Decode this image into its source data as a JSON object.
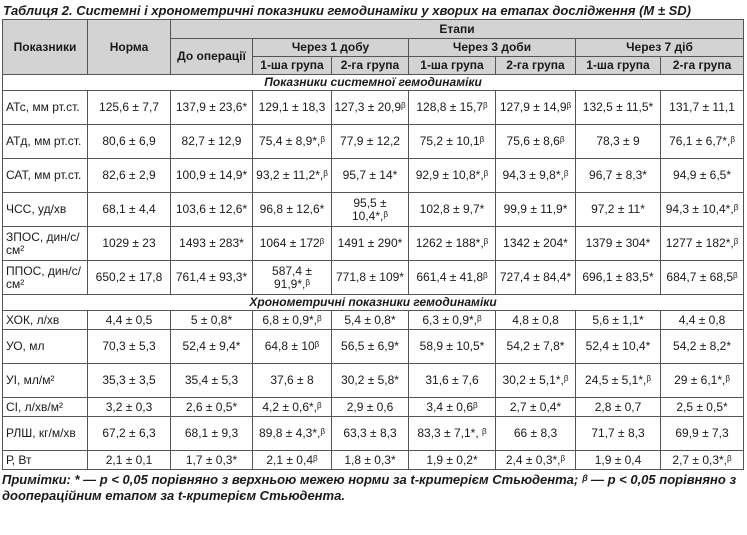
{
  "caption": "Таблиця 2. Системні і хронометричні показники гемодинаміки у хворих на етапах дослідження (M ± SD)",
  "header": {
    "indicator": "Показники",
    "norm": "Норма",
    "stages": "Етапи",
    "before_op": "До операції",
    "after_1_day": "Через 1 добу",
    "after_3_days": "Через 3 доби",
    "after_7_days": "Через 7 діб",
    "group1": "1-ша група",
    "group2": "2-га група"
  },
  "sections": [
    {
      "title": "Показники системної гемодинаміки",
      "rows": [
        {
          "label": "АТс, мм рт.ст.",
          "cells": [
            "125,6 ± 7,7",
            "137,9 ± 23,6*",
            "129,1 ± 18,3",
            "127,3 ± 20,9ᵝ",
            "128,8 ± 15,7ᵝ",
            "127,9 ± 14,9ᵝ",
            "132,5 ± 11,5*",
            "131,7 ± 11,1"
          ]
        },
        {
          "label": "АТд, мм рт.ст.",
          "cells": [
            "80,6 ± 6,9",
            "82,7 ± 12,9",
            "75,4 ± 8,9*,ᵝ",
            "77,9 ± 12,2",
            "75,2 ± 10,1ᵝ",
            "75,6 ± 8,6ᵝ",
            "78,3 ± 9",
            "76,1 ± 6,7*,ᵝ"
          ]
        },
        {
          "label": "САТ, мм рт.ст.",
          "cells": [
            "82,6 ± 2,9",
            "100,9 ± 14,9*",
            "93,2 ± 11,2*,ᵝ",
            "95,7 ± 14*",
            "92,9 ± 10,8*,ᵝ",
            "94,3 ± 9,8*,ᵝ",
            "96,7 ± 8,3*",
            "94,9 ± 6,5*"
          ]
        },
        {
          "label": "ЧСС, уд/хв",
          "cells": [
            "68,1 ± 4,4",
            "103,6 ± 12,6*",
            "96,8 ± 12,6*",
            "95,5 ± 10,4*,ᵝ",
            "102,8 ± 9,7*",
            "99,9 ± 11,9*",
            "97,2 ± 11*",
            "94,3 ± 10,4*,ᵝ"
          ]
        },
        {
          "label": "ЗПОС, дин/с/см²",
          "cells": [
            "1029 ± 23",
            "1493 ± 283*",
            "1064 ± 172ᵝ",
            "1491 ± 290*",
            "1262 ± 188*,ᵝ",
            "1342 ± 204*",
            "1379 ± 304*",
            "1277 ± 182*,ᵝ"
          ]
        },
        {
          "label": "ППОС, дин/с/см²",
          "cells": [
            "650,2 ± 17,8",
            "761,4 ± 93,3*",
            "587,4 ± 91,9*,ᵝ",
            "771,8 ± 109*",
            "661,4 ± 41,8ᵝ",
            "727,4 ± 84,4*",
            "696,1 ± 83,5*",
            "684,7 ± 68,5ᵝ"
          ]
        }
      ]
    },
    {
      "title": "Хронометричні показники гемодинаміки",
      "rows": [
        {
          "label": "ХОК, л/хв",
          "cells": [
            "4,4 ± 0,5",
            "5 ± 0,8*",
            "6,8 ± 0,9*,ᵝ",
            "5,4 ± 0,8*",
            "6,3 ± 0,9*,ᵝ",
            "4,8 ± 0,8",
            "5,6 ± 1,1*",
            "4,4 ± 0,8"
          ]
        },
        {
          "label": "УО, мл",
          "cells": [
            "70,3 ± 5,3",
            "52,4 ± 9,4*",
            "64,8 ± 10ᵝ",
            "56,5 ± 6,9*",
            "58,9 ± 10,5*",
            "54,2 ± 7,8*",
            "52,4 ± 10,4*",
            "54,2 ± 8,2*"
          ]
        },
        {
          "label": "УІ, мл/м²",
          "cells": [
            "35,3 ± 3,5",
            "35,4 ± 5,3",
            "37,6 ± 8",
            "30,2 ± 5,8*",
            "31,6 ± 7,6",
            "30,2 ± 5,1*,ᵝ",
            "24,5 ± 5,1*,ᵝ",
            "29 ± 6,1*,ᵝ"
          ]
        },
        {
          "label": "СІ, л/хв/м²",
          "cells": [
            "3,2 ± 0,3",
            "2,6 ± 0,5*",
            "4,2 ± 0,6*,ᵝ",
            "2,9 ± 0,6",
            "3,4 ± 0,6ᵝ",
            "2,7 ± 0,4*",
            "2,8 ± 0,7",
            "2,5 ± 0,5*"
          ]
        },
        {
          "label": "РЛШ, кг/м/хв",
          "cells": [
            "67,2 ± 6,3",
            "68,1 ± 9,3",
            "89,8 ± 4,3*,ᵝ",
            "63,3 ± 8,3",
            "83,3 ± 7,1*, ᵝ",
            "66 ± 8,3",
            "71,7 ± 8,3",
            "69,9 ± 7,3"
          ]
        },
        {
          "label": "Р, Вт",
          "cells": [
            "2,1 ± 0,1",
            "1,7 ± 0,3*",
            "2,1 ± 0,4ᵝ",
            "1,8 ± 0,3*",
            "1,9 ± 0,2*",
            "2,4 ± 0,3*,ᵝ",
            "1,9 ± 0,4",
            "2,7 ± 0,3*,ᵝ"
          ]
        }
      ]
    }
  ],
  "note": "Примітки: * — p < 0,05 порівняно з верхньою межею норми за t-критерієм Стьюдента; ᵝ — p < 0,05 порівняно з доопераційним етапом за t-критерієм Стьюдента."
}
